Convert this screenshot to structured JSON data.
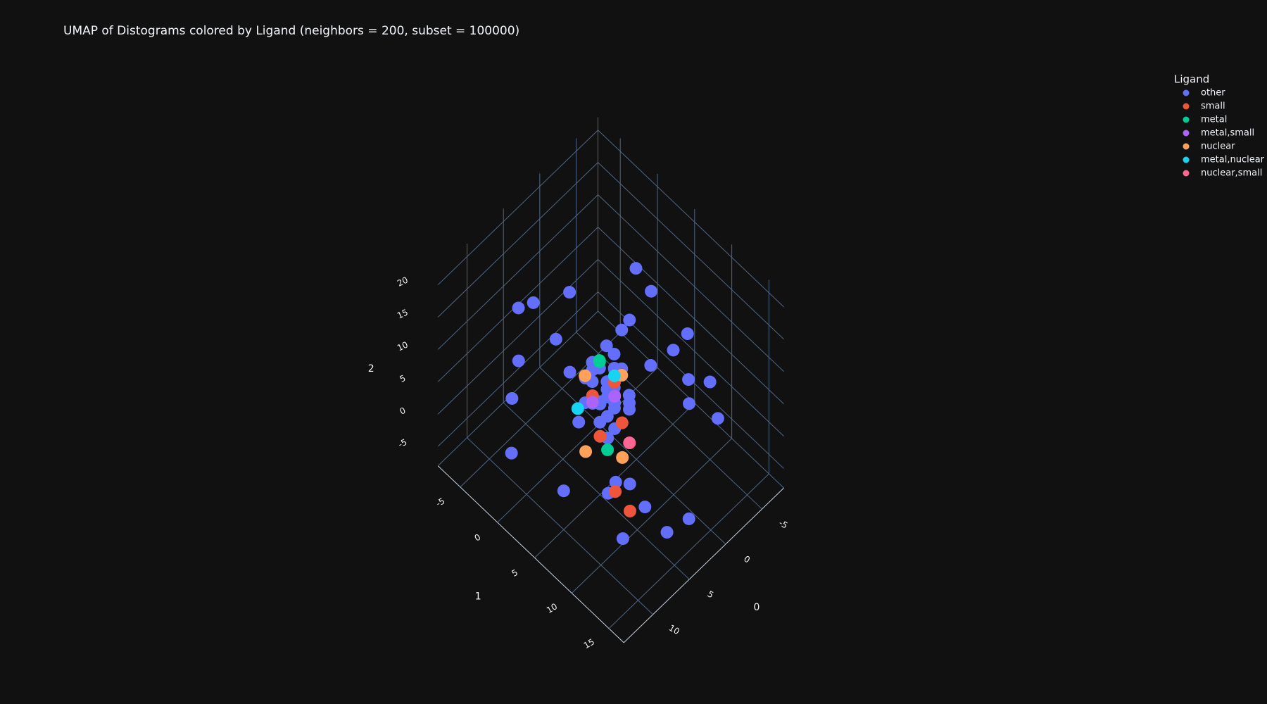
{
  "chart_data": {
    "type": "scatter3d",
    "title": "UMAP of Distograms colored by Ligand (neighbors = 200, subset = 100000)",
    "legend_title": "Ligand",
    "legend_position": "top-right",
    "xaxis_title": "0",
    "yaxis_title": "1",
    "zaxis_title": "2",
    "xlim": [
      -8,
      14
    ],
    "ylim": [
      -8,
      17
    ],
    "zlim": [
      -8,
      22
    ],
    "xticks": [
      -5,
      0,
      5,
      10
    ],
    "yticks": [
      -5,
      0,
      5,
      10,
      15
    ],
    "zticks": [
      -5,
      0,
      5,
      10,
      15,
      20
    ],
    "grid": true,
    "series": [
      {
        "name": "other",
        "color": "#636efa",
        "x": [
          2,
          3,
          4,
          1,
          5,
          3,
          2,
          4,
          3,
          2,
          1,
          4,
          5,
          3,
          2,
          3,
          4,
          2,
          3,
          1,
          6,
          -2,
          8,
          0,
          10,
          -4,
          7,
          5,
          -1,
          9,
          12,
          -5,
          3,
          6,
          -3,
          11,
          2,
          8,
          -2,
          4,
          0,
          5,
          7,
          1,
          -6,
          9,
          3,
          10,
          -1,
          6,
          2,
          4,
          3,
          5,
          1,
          3,
          2,
          4,
          6,
          0
        ],
        "y": [
          3,
          4,
          5,
          4,
          3,
          6,
          2,
          3,
          5,
          4,
          5,
          2,
          4,
          3,
          6,
          4,
          5,
          4,
          2,
          3,
          -3,
          8,
          2,
          12,
          5,
          3,
          -4,
          14,
          6,
          10,
          0,
          10,
          15,
          -5,
          2,
          8,
          -2,
          11,
          14,
          16,
          -4,
          9,
          13,
          4,
          6,
          -3,
          7,
          12,
          0,
          4,
          4,
          3,
          5,
          5,
          3,
          2,
          6,
          4,
          7,
          2
        ],
        "z": [
          4,
          5,
          3,
          6,
          4,
          2,
          5,
          3,
          4,
          7,
          3,
          6,
          5,
          2,
          4,
          5,
          6,
          3,
          4,
          5,
          14,
          10,
          16,
          12,
          -2,
          0,
          5,
          -4,
          18,
          2,
          9,
          4,
          -3,
          11,
          15,
          13,
          0,
          -5,
          6,
          17,
          8,
          -2,
          1,
          12,
          6,
          -6,
          19,
          7,
          3,
          10,
          1,
          8,
          0,
          6,
          2,
          7,
          3,
          1,
          4,
          5
        ]
      },
      {
        "name": "small",
        "color": "#ef553b",
        "x": [
          2,
          4,
          3,
          5,
          7,
          6
        ],
        "y": [
          4,
          3,
          6,
          5,
          9,
          10
        ],
        "z": [
          5,
          4,
          2,
          1,
          -1,
          -4
        ]
      },
      {
        "name": "metal",
        "color": "#00cc96",
        "x": [
          1,
          5,
          2
        ],
        "y": [
          1,
          6,
          2
        ],
        "z": [
          4,
          0,
          6
        ]
      },
      {
        "name": "metal,small",
        "color": "#ab63fa",
        "x": [
          3,
          4
        ],
        "y": [
          5,
          3
        ],
        "z": [
          5,
          3
        ]
      },
      {
        "name": "nuclear",
        "color": "#ffa15a",
        "x": [
          4,
          1,
          8,
          5
        ],
        "y": [
          2,
          4,
          6,
          8
        ],
        "z": [
          6,
          5,
          3,
          1
        ]
      },
      {
        "name": "metal,nuclear",
        "color": "#19d3f3",
        "x": [
          5,
          2
        ],
        "y": [
          2,
          4
        ],
        "z": [
          2,
          6
        ]
      },
      {
        "name": "nuclear,small",
        "color": "#ff6692",
        "x": [
          3
        ],
        "y": [
          7
        ],
        "z": [
          0
        ]
      }
    ]
  }
}
